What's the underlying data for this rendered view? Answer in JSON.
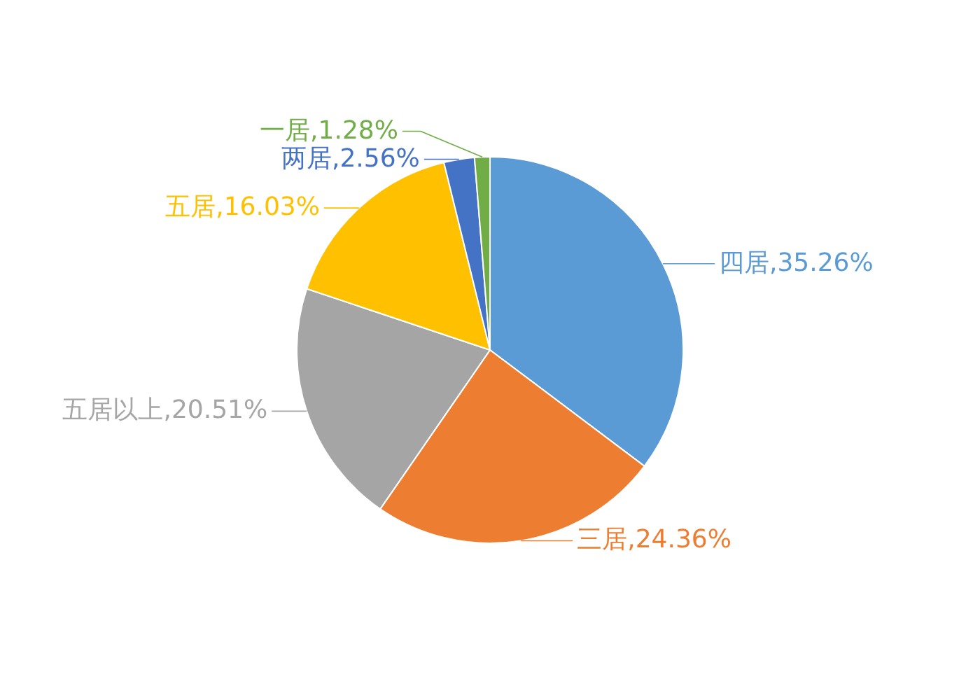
{
  "chart_data": {
    "type": "pie",
    "categories": [
      "四居",
      "三居",
      "五居以上",
      "五居",
      "两居",
      "一居"
    ],
    "values": [
      35.26,
      24.36,
      20.51,
      16.03,
      2.56,
      1.28
    ],
    "value_labels": [
      "35.26%",
      "24.36%",
      "20.51%",
      "16.03%",
      "2.56%",
      "1.28%"
    ],
    "colors": [
      "#5b9bd5",
      "#ed7d31",
      "#a5a5a5",
      "#ffc000",
      "#4472c4",
      "#70ad47"
    ]
  }
}
